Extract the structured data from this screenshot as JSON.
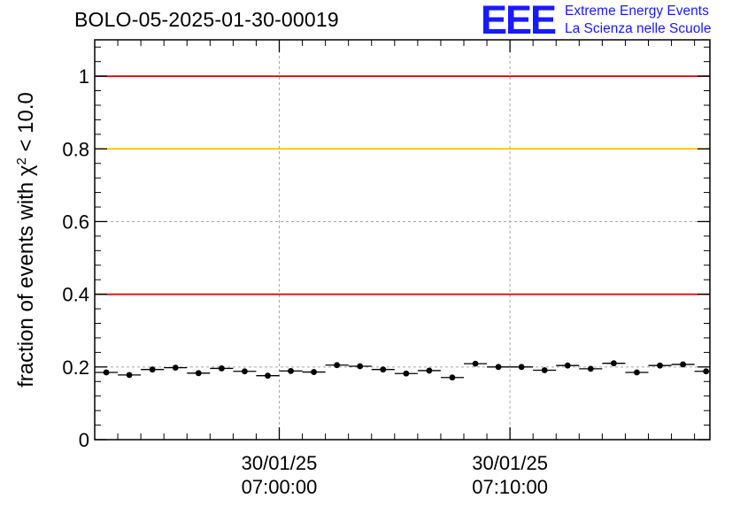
{
  "header": {
    "run_title": "BOLO-05-2025-01-30-00019"
  },
  "logo": {
    "letters": "EEE",
    "line1": "Extreme Energy Events",
    "line2": "La Scienza nelle Scuole",
    "color": "#1a1aff"
  },
  "chart_data": {
    "type": "scatter",
    "title": "",
    "xlabel": "",
    "ylabel_main": "fraction of events with χ",
    "ylabel_sup": "2",
    "ylabel_tail": " < 10.0",
    "ylim": [
      0,
      1.1
    ],
    "xlim": [
      "30/01/25 06:52:00",
      "30/01/25 07:18:40"
    ],
    "grid": true,
    "y_ticks": [
      {
        "value": 0,
        "label": "0"
      },
      {
        "value": 0.2,
        "label": "0.2"
      },
      {
        "value": 0.4,
        "label": "0.4"
      },
      {
        "value": 0.6,
        "label": "0.6"
      },
      {
        "value": 0.8,
        "label": "0.8"
      },
      {
        "value": 1,
        "label": "1"
      }
    ],
    "x_ticks": [
      {
        "time": "30/01/25 07:00:00",
        "line1": "30/01/25",
        "line2": "07:00:00"
      },
      {
        "time": "30/01/25 07:10:00",
        "line1": "30/01/25",
        "line2": "07:10:00"
      }
    ],
    "reference_lines": [
      {
        "value": 1.0,
        "color": "#e00000"
      },
      {
        "value": 0.8,
        "color": "#ffc000"
      },
      {
        "value": 0.4,
        "color": "#e00000"
      }
    ],
    "bin_width_seconds": 60,
    "points": [
      {
        "x": "06:52:30",
        "y": 0.185
      },
      {
        "x": "06:53:30",
        "y": 0.178
      },
      {
        "x": "06:54:30",
        "y": 0.193
      },
      {
        "x": "06:55:30",
        "y": 0.198
      },
      {
        "x": "06:56:30",
        "y": 0.183
      },
      {
        "x": "06:57:30",
        "y": 0.196
      },
      {
        "x": "06:58:30",
        "y": 0.188
      },
      {
        "x": "06:59:30",
        "y": 0.176
      },
      {
        "x": "07:00:30",
        "y": 0.189
      },
      {
        "x": "07:01:30",
        "y": 0.186
      },
      {
        "x": "07:02:30",
        "y": 0.205
      },
      {
        "x": "07:03:30",
        "y": 0.202
      },
      {
        "x": "07:04:30",
        "y": 0.193
      },
      {
        "x": "07:05:30",
        "y": 0.182
      },
      {
        "x": "07:06:30",
        "y": 0.19
      },
      {
        "x": "07:07:30",
        "y": 0.171
      },
      {
        "x": "07:08:30",
        "y": 0.209
      },
      {
        "x": "07:09:30",
        "y": 0.2
      },
      {
        "x": "07:10:30",
        "y": 0.2
      },
      {
        "x": "07:11:30",
        "y": 0.191
      },
      {
        "x": "07:12:30",
        "y": 0.204
      },
      {
        "x": "07:13:30",
        "y": 0.195
      },
      {
        "x": "07:14:30",
        "y": 0.21
      },
      {
        "x": "07:15:30",
        "y": 0.185
      },
      {
        "x": "07:16:30",
        "y": 0.204
      },
      {
        "x": "07:17:30",
        "y": 0.207
      },
      {
        "x": "07:18:30",
        "y": 0.188
      }
    ]
  }
}
